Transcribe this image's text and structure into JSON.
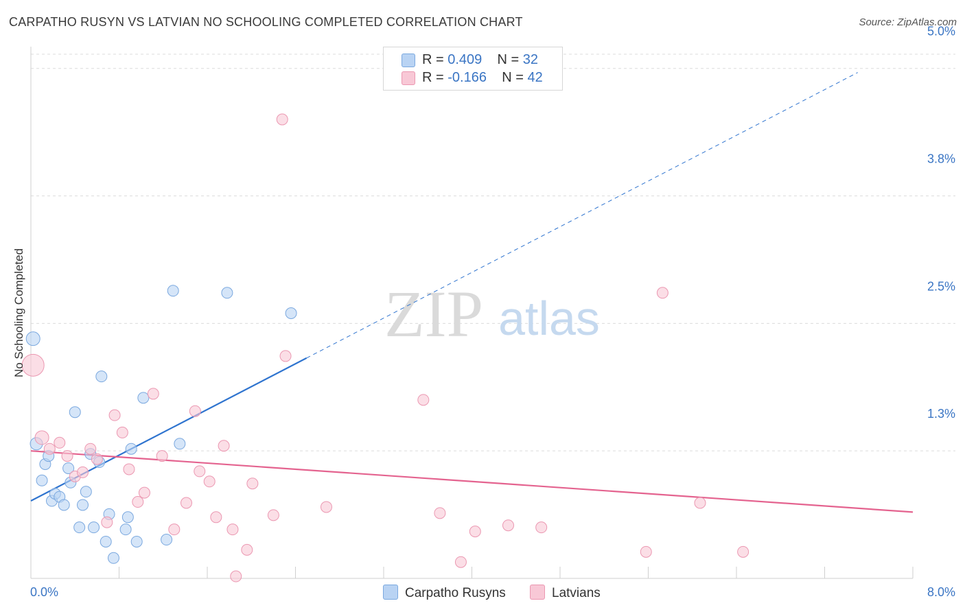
{
  "title": "CARPATHO RUSYN VS LATVIAN NO SCHOOLING COMPLETED CORRELATION CHART",
  "source": "Source: ZipAtlas.com",
  "colors": {
    "blue_fill": "#b9d3f3",
    "blue_stroke": "#7aa8df",
    "blue_line": "#2f74cf",
    "pink_fill": "#f8c8d6",
    "pink_stroke": "#eb97b1",
    "pink_line": "#e4638f",
    "tick_text": "#3a75c4",
    "grid": "#dcdcdc"
  },
  "legend": {
    "r_label": "R =",
    "n_label": "N =",
    "rows": [
      {
        "r": "0.409",
        "n": "32"
      },
      {
        "r": "-0.166",
        "n": "42"
      }
    ]
  },
  "watermark": {
    "zip": "ZIP",
    "atlas": "atlas"
  },
  "chart_data": {
    "type": "scatter",
    "title": "CARPATHO RUSYN VS LATVIAN NO SCHOOLING COMPLETED CORRELATION CHART",
    "xlabel": "",
    "ylabel": "No Schooling Completed",
    "xlim": [
      0,
      8.0
    ],
    "ylim": [
      0,
      5.2
    ],
    "x_tick_labels": [
      "0.0%",
      "8.0%"
    ],
    "y_ticks": [
      {
        "value": 1.25,
        "label": "1.3%"
      },
      {
        "value": 2.5,
        "label": "2.5%"
      },
      {
        "value": 3.75,
        "label": "3.8%"
      },
      {
        "value": 5.0,
        "label": "5.0%"
      }
    ],
    "series": [
      {
        "name": "Carpatho Rusyns",
        "color": "blue",
        "points": [
          [
            0.02,
            2.35,
            10
          ],
          [
            0.05,
            1.32,
            9
          ],
          [
            0.1,
            0.96,
            8
          ],
          [
            0.13,
            1.12,
            8
          ],
          [
            0.16,
            1.2,
            8
          ],
          [
            0.19,
            0.76,
            8
          ],
          [
            0.22,
            0.83,
            8
          ],
          [
            0.26,
            0.8,
            8
          ],
          [
            0.3,
            0.72,
            8
          ],
          [
            0.34,
            1.08,
            8
          ],
          [
            0.36,
            0.94,
            8
          ],
          [
            0.4,
            1.63,
            8
          ],
          [
            0.44,
            0.5,
            8
          ],
          [
            0.47,
            0.72,
            8
          ],
          [
            0.5,
            0.85,
            8
          ],
          [
            0.54,
            1.22,
            8
          ],
          [
            0.57,
            0.5,
            8
          ],
          [
            0.62,
            1.14,
            8
          ],
          [
            0.64,
            1.98,
            8
          ],
          [
            0.68,
            0.36,
            8
          ],
          [
            0.71,
            0.63,
            8
          ],
          [
            0.75,
            0.2,
            8
          ],
          [
            0.86,
            0.48,
            8
          ],
          [
            0.88,
            0.6,
            8
          ],
          [
            0.96,
            0.36,
            8
          ],
          [
            0.91,
            1.27,
            8
          ],
          [
            1.02,
            1.77,
            8
          ],
          [
            1.23,
            0.38,
            8
          ],
          [
            1.29,
            2.82,
            8
          ],
          [
            1.35,
            1.32,
            8
          ],
          [
            1.78,
            2.8,
            8
          ],
          [
            2.36,
            2.6,
            8
          ]
        ]
      },
      {
        "name": "Latvians",
        "color": "pink",
        "points": [
          [
            0.02,
            2.09,
            16
          ],
          [
            0.1,
            1.38,
            10
          ],
          [
            0.17,
            1.27,
            8
          ],
          [
            0.26,
            1.33,
            8
          ],
          [
            0.33,
            1.2,
            8
          ],
          [
            0.4,
            1.0,
            8
          ],
          [
            0.47,
            1.04,
            8
          ],
          [
            0.54,
            1.27,
            8
          ],
          [
            0.6,
            1.17,
            8
          ],
          [
            0.69,
            0.55,
            8
          ],
          [
            0.76,
            1.6,
            8
          ],
          [
            0.83,
            1.43,
            8
          ],
          [
            0.89,
            1.07,
            8
          ],
          [
            0.97,
            0.75,
            8
          ],
          [
            1.03,
            0.84,
            8
          ],
          [
            1.11,
            1.81,
            8
          ],
          [
            1.19,
            1.2,
            8
          ],
          [
            1.3,
            0.48,
            8
          ],
          [
            1.41,
            0.74,
            8
          ],
          [
            1.49,
            1.64,
            8
          ],
          [
            1.53,
            1.05,
            8
          ],
          [
            1.62,
            0.95,
            8
          ],
          [
            1.68,
            0.6,
            8
          ],
          [
            1.75,
            1.3,
            8
          ],
          [
            1.83,
            0.48,
            8
          ],
          [
            1.86,
            0.02,
            8
          ],
          [
            1.96,
            0.28,
            8
          ],
          [
            2.01,
            0.93,
            8
          ],
          [
            2.2,
            0.62,
            8
          ],
          [
            2.28,
            4.5,
            8
          ],
          [
            2.31,
            2.18,
            8
          ],
          [
            2.68,
            0.7,
            8
          ],
          [
            3.56,
            1.75,
            8
          ],
          [
            3.71,
            0.64,
            8
          ],
          [
            3.9,
            0.16,
            8
          ],
          [
            4.03,
            0.46,
            8
          ],
          [
            4.33,
            0.52,
            8
          ],
          [
            4.63,
            0.5,
            8
          ],
          [
            5.58,
            0.26,
            8
          ],
          [
            5.73,
            2.8,
            8
          ],
          [
            6.07,
            0.74,
            8
          ],
          [
            6.46,
            0.26,
            8
          ]
        ]
      }
    ],
    "trend_lines": [
      {
        "series": "Carpatho Rusyns",
        "solid": [
          [
            0.0,
            0.76
          ],
          [
            2.5,
            2.16
          ]
        ],
        "dashed": [
          [
            2.5,
            2.16
          ],
          [
            7.5,
            4.96
          ]
        ]
      },
      {
        "series": "Latvians",
        "solid": [
          [
            0.0,
            1.25
          ],
          [
            8.0,
            0.65
          ]
        ]
      }
    ],
    "legend_position": "top-center"
  }
}
